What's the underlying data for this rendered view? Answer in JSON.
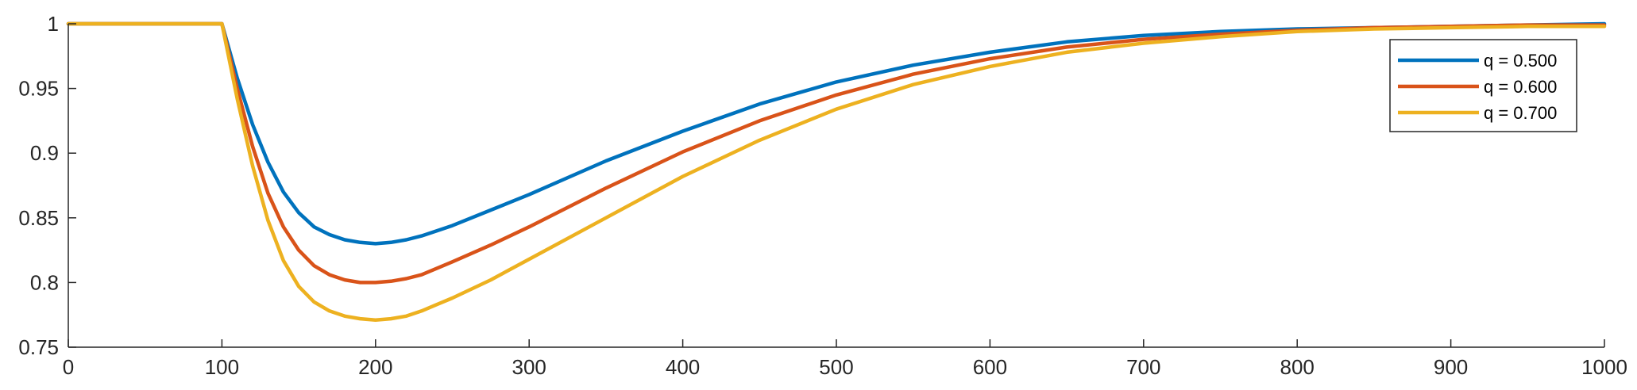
{
  "chart_data": {
    "type": "line",
    "title": "",
    "xlabel": "",
    "ylabel": "",
    "xlim": [
      0,
      1000
    ],
    "ylim": [
      0.75,
      1
    ],
    "xticks": [
      0,
      100,
      200,
      300,
      400,
      500,
      600,
      700,
      800,
      900,
      1000
    ],
    "xtick_labels": [
      "0",
      "100",
      "200",
      "300",
      "400",
      "500",
      "600",
      "700",
      "800",
      "900",
      "1000"
    ],
    "yticks": [
      0.75,
      0.8,
      0.85,
      0.9,
      0.95,
      1
    ],
    "ytick_labels": [
      "0.75",
      "0.8",
      "0.85",
      "0.9",
      "0.95",
      "1"
    ],
    "grid": false,
    "legend_position": "top-right",
    "x": [
      0,
      50,
      100,
      110,
      120,
      130,
      140,
      150,
      160,
      170,
      180,
      190,
      200,
      210,
      220,
      230,
      240,
      250,
      275,
      300,
      350,
      400,
      450,
      500,
      550,
      600,
      650,
      700,
      750,
      800,
      850,
      900,
      950,
      1000
    ],
    "series": [
      {
        "name": "q = 0.500",
        "color": "#0072BD",
        "values": [
          1,
          1,
          1,
          0.958,
          0.922,
          0.893,
          0.87,
          0.854,
          0.843,
          0.837,
          0.833,
          0.831,
          0.83,
          0.831,
          0.833,
          0.836,
          0.84,
          0.844,
          0.856,
          0.868,
          0.894,
          0.917,
          0.938,
          0.955,
          0.968,
          0.978,
          0.986,
          0.991,
          0.994,
          0.996,
          0.997,
          0.998,
          0.999,
          1.0
        ]
      },
      {
        "name": "q = 0.600",
        "color": "#D95319",
        "values": [
          1,
          1,
          1,
          0.95,
          0.905,
          0.869,
          0.843,
          0.825,
          0.813,
          0.806,
          0.802,
          0.8,
          0.8,
          0.801,
          0.803,
          0.806,
          0.811,
          0.816,
          0.829,
          0.843,
          0.873,
          0.901,
          0.925,
          0.945,
          0.961,
          0.973,
          0.982,
          0.988,
          0.992,
          0.995,
          0.997,
          0.998,
          0.999,
          0.999
        ]
      },
      {
        "name": "q = 0.700",
        "color": "#EDB120",
        "values": [
          1,
          1,
          1,
          0.942,
          0.89,
          0.848,
          0.817,
          0.797,
          0.785,
          0.778,
          0.774,
          0.772,
          0.771,
          0.772,
          0.774,
          0.778,
          0.783,
          0.788,
          0.802,
          0.818,
          0.85,
          0.882,
          0.91,
          0.934,
          0.953,
          0.967,
          0.978,
          0.985,
          0.99,
          0.994,
          0.996,
          0.997,
          0.998,
          0.998
        ]
      }
    ]
  }
}
